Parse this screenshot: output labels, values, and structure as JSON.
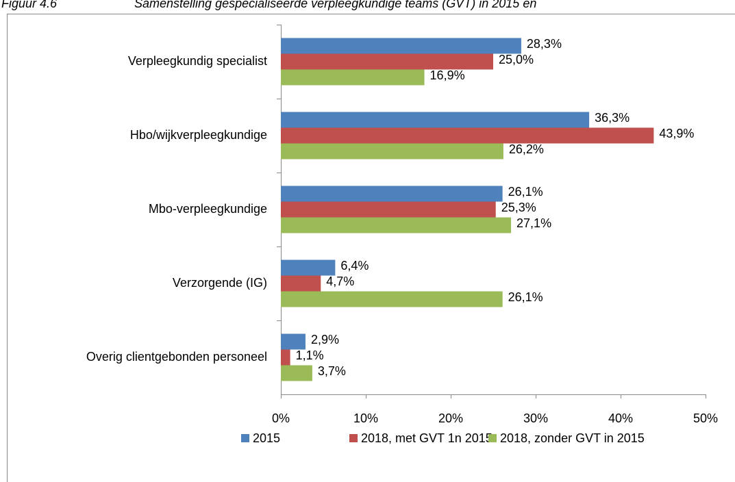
{
  "chart_data": {
    "type": "bar",
    "orientation": "horizontal",
    "title": "Figuur 4.6",
    "subtitle": "Samenstelling gespecialiseerde verpleegkundige teams (GVT) in 2015 en",
    "categories": [
      "Verpleegkundig specialist",
      "Hbo/wijkverpleegkundige",
      "Mbo-verpleegkundige",
      "Verzorgende (IG)",
      "Overig clientgebonden personeel"
    ],
    "series": [
      {
        "name": "2015",
        "color": "#4f81bd",
        "values": [
          28.3,
          36.3,
          26.1,
          6.4,
          2.9
        ],
        "value_labels": [
          "28,3%",
          "36,3%",
          "26,1%",
          "6,4%",
          "2,9%"
        ]
      },
      {
        "name": "2018, met GVT 1n 2015",
        "color": "#c0504d",
        "values": [
          25.0,
          43.9,
          25.3,
          4.7,
          1.1
        ],
        "value_labels": [
          "25,0%",
          "43,9%",
          "25,3%",
          "4,7%",
          "1,1%"
        ]
      },
      {
        "name": "2018, zonder GVT in 2015",
        "color": "#9bbb59",
        "values": [
          16.9,
          26.2,
          27.1,
          26.1,
          3.7
        ],
        "value_labels": [
          "16,9%",
          "26,2%",
          "27,1%",
          "26,1%",
          "3,7%"
        ]
      }
    ],
    "xlim": [
      0,
      50
    ],
    "xticks": [
      {
        "value": 0,
        "label": "0%"
      },
      {
        "value": 10,
        "label": "10%"
      },
      {
        "value": 20,
        "label": "20%"
      },
      {
        "value": 30,
        "label": "30%"
      },
      {
        "value": 40,
        "label": "40%"
      },
      {
        "value": 50,
        "label": "50%"
      }
    ],
    "legend": "bottom"
  }
}
